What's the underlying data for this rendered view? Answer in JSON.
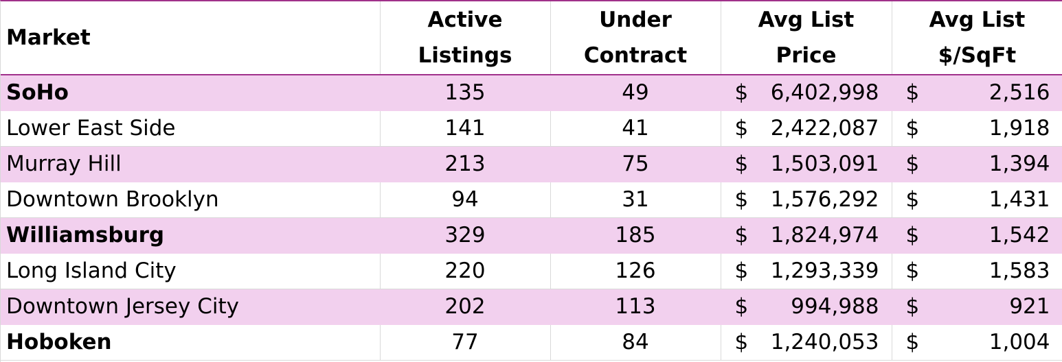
{
  "headers": {
    "market": "Market",
    "active": [
      "Active",
      "Listings"
    ],
    "under": [
      "Under",
      "Contract"
    ],
    "price": [
      "Avg List",
      "Price"
    ],
    "sqft": [
      "Avg List",
      "$/SqFt"
    ]
  },
  "currency_symbol": "$",
  "colors": {
    "header_rule": "#a0308a",
    "row_shade": "#f2d0ee",
    "grid": "#d9d9d9"
  },
  "rows": [
    {
      "market": "SoHo",
      "bold": true,
      "shaded": true,
      "active": "135",
      "under": "49",
      "price": "6,402,998",
      "sqft": "2,516"
    },
    {
      "market": "Lower East Side",
      "bold": false,
      "shaded": false,
      "active": "141",
      "under": "41",
      "price": "2,422,087",
      "sqft": "1,918"
    },
    {
      "market": "Murray Hill",
      "bold": false,
      "shaded": true,
      "active": "213",
      "under": "75",
      "price": "1,503,091",
      "sqft": "1,394"
    },
    {
      "market": "Downtown Brooklyn",
      "bold": false,
      "shaded": false,
      "active": "94",
      "under": "31",
      "price": "1,576,292",
      "sqft": "1,431"
    },
    {
      "market": "Williamsburg",
      "bold": true,
      "shaded": true,
      "active": "329",
      "under": "185",
      "price": "1,824,974",
      "sqft": "1,542"
    },
    {
      "market": "Long Island City",
      "bold": false,
      "shaded": false,
      "active": "220",
      "under": "126",
      "price": "1,293,339",
      "sqft": "1,583"
    },
    {
      "market": "Downtown Jersey City",
      "bold": false,
      "shaded": true,
      "active": "202",
      "under": "113",
      "price": "994,988",
      "sqft": "921"
    },
    {
      "market": "Hoboken",
      "bold": true,
      "shaded": false,
      "active": "77",
      "under": "84",
      "price": "1,240,053",
      "sqft": "1,004"
    }
  ]
}
